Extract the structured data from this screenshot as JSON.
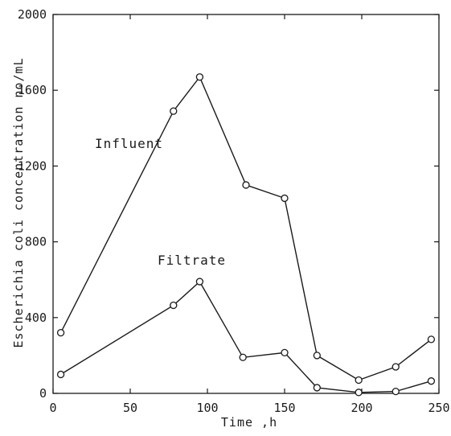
{
  "chart_data": {
    "type": "line",
    "title": "",
    "xlabel": "Time ,h",
    "ylabel": "Escherichia  coli  concentration  no/mL",
    "xlim": [
      0,
      250
    ],
    "ylim": [
      0,
      2000
    ],
    "x_ticks": [
      "0",
      "50",
      "100",
      "150",
      "200",
      "250"
    ],
    "y_ticks": [
      "0",
      "400",
      "800",
      "1200",
      "1600",
      "2000"
    ],
    "grid": false,
    "legend": "none",
    "line_color": "#1a1a1a",
    "series": [
      {
        "name": "Influent",
        "points": [
          [
            5,
            320
          ],
          [
            78,
            1490
          ],
          [
            95,
            1670
          ],
          [
            125,
            1100
          ],
          [
            150,
            1030
          ],
          [
            171,
            200
          ],
          [
            198,
            70
          ],
          [
            222,
            140
          ],
          [
            245,
            285
          ]
        ]
      },
      {
        "name": "Filtrate",
        "points": [
          [
            5,
            100
          ],
          [
            78,
            465
          ],
          [
            95,
            590
          ],
          [
            123,
            190
          ],
          [
            150,
            215
          ],
          [
            171,
            30
          ],
          [
            198,
            5
          ],
          [
            222,
            10
          ],
          [
            245,
            65
          ]
        ]
      }
    ]
  }
}
